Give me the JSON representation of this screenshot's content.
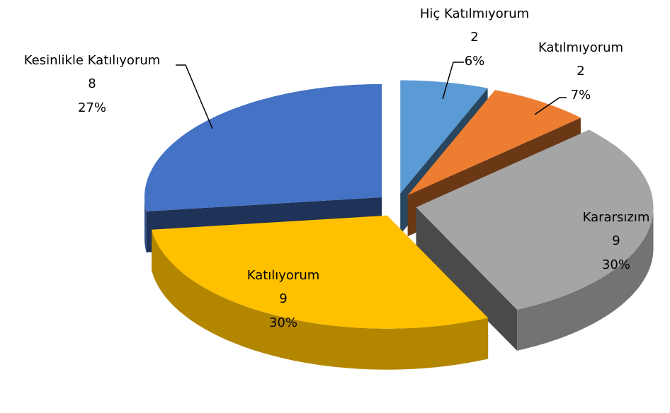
{
  "chart_data": {
    "type": "pie3d",
    "categories": [
      "Hiç Katılmıyorum",
      "Katılmıyorum",
      "Kararsızım",
      "Katılıyorum",
      "Kesinlikle Katılıyorum"
    ],
    "counts": [
      2,
      2,
      9,
      9,
      8
    ],
    "values": [
      6,
      7,
      30,
      30,
      27
    ],
    "value_labels": [
      "6%",
      "7%",
      "30%",
      "30%",
      "27%"
    ],
    "colors": [
      "#5b9bd5",
      "#ed7d31",
      "#a5a5a5",
      "#ffc000",
      "#4472c4"
    ]
  }
}
